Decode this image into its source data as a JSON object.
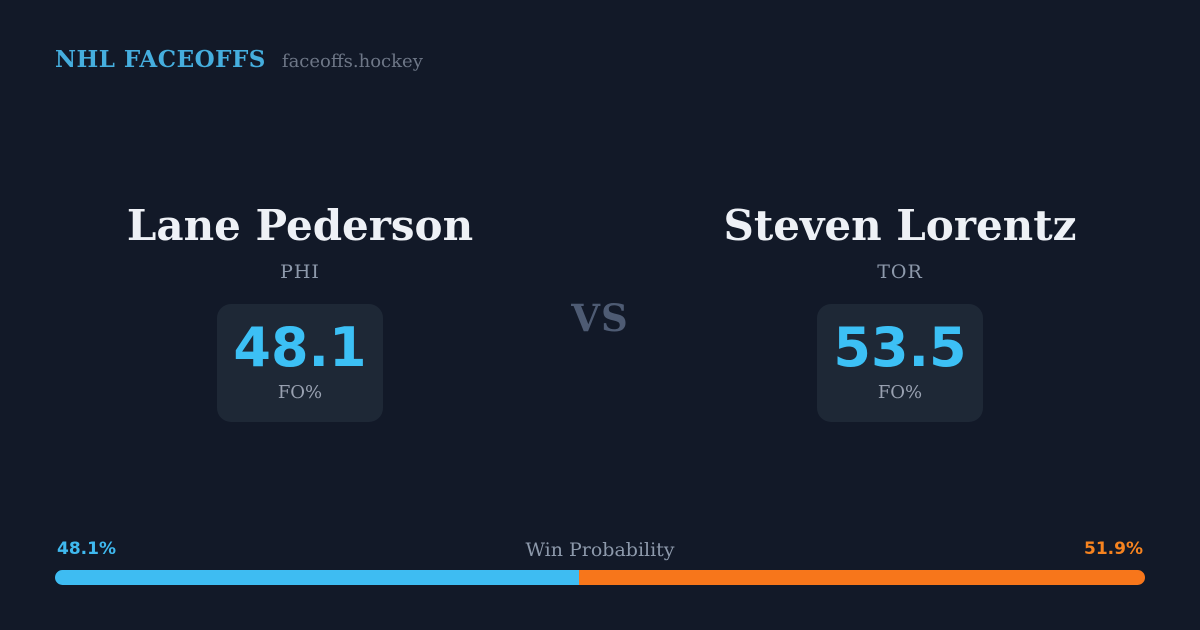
{
  "header": {
    "title": "NHL FACEOFFS",
    "site": "faceoffs.hockey"
  },
  "matchup": {
    "vs_label": "VS",
    "players": [
      {
        "name": "Lane Pederson",
        "team": "PHI",
        "stat_value": "48.1",
        "stat_label": "FO%"
      },
      {
        "name": "Steven Lorentz",
        "team": "TOR",
        "stat_value": "53.5",
        "stat_label": "FO%"
      }
    ]
  },
  "win_probability": {
    "title": "Win Probability",
    "left_label": "48.1%",
    "right_label": "51.9%",
    "left_value": 48.1,
    "right_value": 51.9
  },
  "colors": {
    "background": "#121928",
    "card_background": "#1e2836",
    "accent_blue": "#3cc0f5",
    "accent_orange": "#f7761b",
    "brand_blue": "#45aede",
    "text_primary": "#eef1f6",
    "text_muted": "#8d99ab"
  }
}
